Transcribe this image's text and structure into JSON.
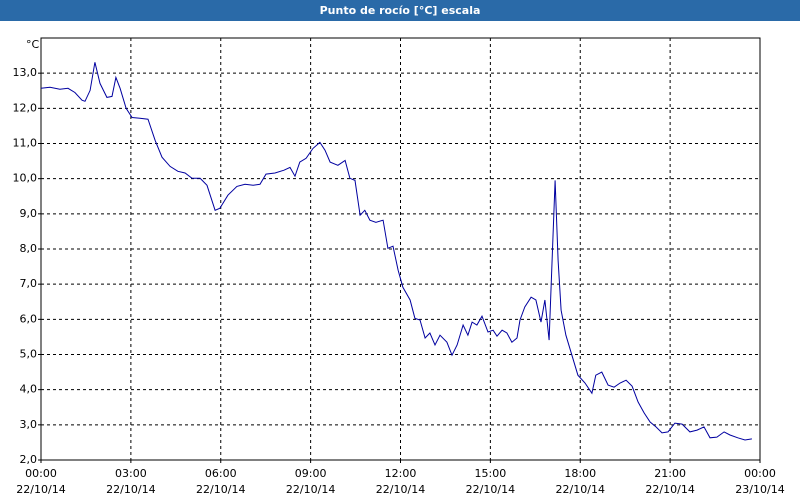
{
  "chart_data": {
    "type": "line",
    "title": "Punto de rocío [°C] escala",
    "y_unit": "°C",
    "xlim": [
      0,
      24
    ],
    "ylim": [
      2,
      14
    ],
    "grid": true,
    "xticks": [
      {
        "value": 0,
        "label": "00:00",
        "date": "22/10/14"
      },
      {
        "value": 3,
        "label": "03:00",
        "date": "22/10/14"
      },
      {
        "value": 6,
        "label": "06:00",
        "date": "22/10/14"
      },
      {
        "value": 9,
        "label": "09:00",
        "date": "22/10/14"
      },
      {
        "value": 12,
        "label": "12:00",
        "date": "22/10/14"
      },
      {
        "value": 15,
        "label": "15:00",
        "date": "22/10/14"
      },
      {
        "value": 18,
        "label": "18:00",
        "date": "22/10/14"
      },
      {
        "value": 21,
        "label": "21:00",
        "date": "22/10/14"
      },
      {
        "value": 24,
        "label": "00:00",
        "date": "23/10/14"
      }
    ],
    "yticks": [
      {
        "value": 2,
        "label": "2,0"
      },
      {
        "value": 3,
        "label": "3,0"
      },
      {
        "value": 4,
        "label": "4,0"
      },
      {
        "value": 5,
        "label": "5,0"
      },
      {
        "value": 6,
        "label": "6,0"
      },
      {
        "value": 7,
        "label": "7,0"
      },
      {
        "value": 8,
        "label": "8,0"
      },
      {
        "value": 9,
        "label": "9,0"
      },
      {
        "value": 10,
        "label": "10,0"
      },
      {
        "value": 11,
        "label": "11,0"
      },
      {
        "value": 12,
        "label": "12,0"
      },
      {
        "value": 13,
        "label": "13,0"
      }
    ],
    "series": [
      {
        "color": "#0000a0",
        "x": [
          0.0,
          0.3,
          0.63,
          0.9,
          1.13,
          1.37,
          1.47,
          1.64,
          1.8,
          1.97,
          2.2,
          2.37,
          2.5,
          2.64,
          2.84,
          3.04,
          3.3,
          3.57,
          3.81,
          4.04,
          4.31,
          4.57,
          4.81,
          5.04,
          5.31,
          5.54,
          5.81,
          5.97,
          6.24,
          6.54,
          6.81,
          7.08,
          7.31,
          7.51,
          7.81,
          8.11,
          8.31,
          8.48,
          8.64,
          8.85,
          9.08,
          9.31,
          9.48,
          9.65,
          9.91,
          10.15,
          10.31,
          10.48,
          10.65,
          10.81,
          10.98,
          11.18,
          11.42,
          11.58,
          11.75,
          11.92,
          12.08,
          12.32,
          12.48,
          12.65,
          12.82,
          12.98,
          13.15,
          13.32,
          13.55,
          13.72,
          13.89,
          14.09,
          14.25,
          14.39,
          14.55,
          14.72,
          14.92,
          15.09,
          15.22,
          15.39,
          15.55,
          15.72,
          15.89,
          15.99,
          16.15,
          16.36,
          16.52,
          16.69,
          16.82,
          16.96,
          17.16,
          17.26,
          17.36,
          17.52,
          17.72,
          17.92,
          18.16,
          18.39,
          18.52,
          18.72,
          18.93,
          19.13,
          19.33,
          19.53,
          19.73,
          19.93,
          20.13,
          20.33,
          20.53,
          20.73,
          20.93,
          21.16,
          21.4,
          21.66,
          21.9,
          22.13,
          22.33,
          22.56,
          22.8,
          23.0,
          23.26,
          23.5,
          23.73
        ],
        "values": [
          12.57,
          12.6,
          12.54,
          12.57,
          12.45,
          12.23,
          12.2,
          12.51,
          13.31,
          12.71,
          12.31,
          12.34,
          12.88,
          12.57,
          12.0,
          11.74,
          11.72,
          11.69,
          11.09,
          10.61,
          10.35,
          10.21,
          10.16,
          10.01,
          10.01,
          9.81,
          9.1,
          9.16,
          9.53,
          9.78,
          9.84,
          9.81,
          9.84,
          10.13,
          10.16,
          10.24,
          10.32,
          10.07,
          10.47,
          10.58,
          10.86,
          11.03,
          10.81,
          10.47,
          10.38,
          10.52,
          10.01,
          9.95,
          8.96,
          9.1,
          8.82,
          8.76,
          8.82,
          8.02,
          8.08,
          7.4,
          6.91,
          6.55,
          6.03,
          5.98,
          5.47,
          5.61,
          5.27,
          5.55,
          5.35,
          4.98,
          5.27,
          5.84,
          5.55,
          5.92,
          5.84,
          6.09,
          5.64,
          5.69,
          5.52,
          5.69,
          5.61,
          5.35,
          5.47,
          5.98,
          6.35,
          6.63,
          6.55,
          5.92,
          6.55,
          5.41,
          9.95,
          7.68,
          6.26,
          5.55,
          4.98,
          4.41,
          4.19,
          3.9,
          4.41,
          4.5,
          4.13,
          4.07,
          4.19,
          4.27,
          4.1,
          3.65,
          3.34,
          3.08,
          2.94,
          2.77,
          2.8,
          3.05,
          3.02,
          2.8,
          2.85,
          2.94,
          2.63,
          2.65,
          2.8,
          2.71,
          2.63,
          2.57,
          2.6
        ]
      }
    ]
  }
}
